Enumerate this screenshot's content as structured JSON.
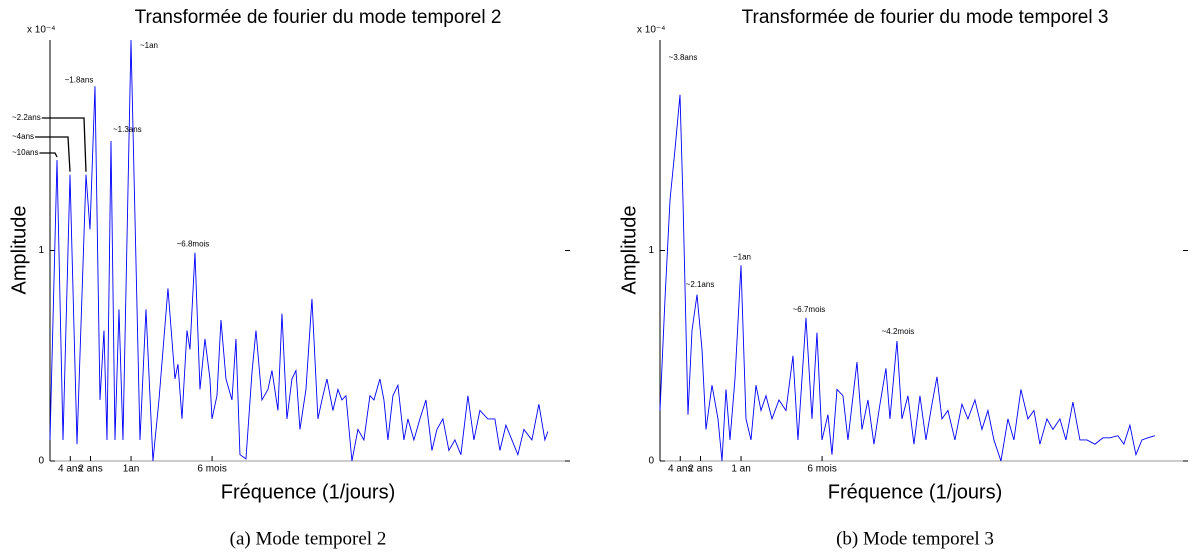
{
  "chart_data": [
    {
      "type": "line",
      "title": "Transformée de fourier du mode temporel 2",
      "y_scale_label": "x 10⁻⁴",
      "xlabel": "Fréquence (1/jours)",
      "ylabel": "Amplitude",
      "caption": "(a) Mode temporel 2",
      "xlim": [
        0,
        0.01758
      ],
      "ylim": [
        0,
        2.0
      ],
      "yticks": [
        0,
        1
      ],
      "xticks": [
        {
          "value": 0.000685,
          "label": "4 ans"
        },
        {
          "value": 0.00137,
          "label": "2 ans"
        },
        {
          "value": 0.00274,
          "label": "1an"
        },
        {
          "value": 0.00548,
          "label": "6 mois"
        }
      ],
      "x": [
        0,
        0.000237,
        0.00044,
        0.000676,
        0.000913,
        0.001217,
        0.001352,
        0.001521,
        0.00169,
        0.001825,
        0.001927,
        0.002062,
        0.002197,
        0.002332,
        0.002467,
        0.002738,
        0.003042,
        0.003245,
        0.003481,
        0.003684,
        0.003988,
        0.004225,
        0.004326,
        0.004462,
        0.004631,
        0.004732,
        0.004901,
        0.00507,
        0.005239,
        0.005408,
        0.005476,
        0.005645,
        0.00578,
        0.005949,
        0.006152,
        0.006287,
        0.006422,
        0.006625,
        0.006828,
        0.006963,
        0.007166,
        0.007368,
        0.007504,
        0.007706,
        0.007842,
        0.008011,
        0.00818,
        0.008315,
        0.00845,
        0.008653,
        0.008856,
        0.009058,
        0.009194,
        0.009363,
        0.009565,
        0.009734,
        0.00987,
        0.010005,
        0.010208,
        0.01041,
        0.010613,
        0.010816,
        0.010951,
        0.011154,
        0.011289,
        0.011424,
        0.011593,
        0.011762,
        0.011965,
        0.0121,
        0.012303,
        0.012506,
        0.012709,
        0.012912,
        0.013081,
        0.013283,
        0.013486,
        0.013689,
        0.013892,
        0.014128,
        0.014331,
        0.014534,
        0.014804,
        0.015041,
        0.01521,
        0.015413,
        0.015616,
        0.015818,
        0.016021,
        0.016292,
        0.016528,
        0.016731,
        0.016832
      ],
      "series": [
        {
          "color": "#0000ff",
          "values": [
            0.1,
            1.43,
            0.1,
            1.36,
            0.08,
            1.36,
            1.1,
            1.78,
            0.29,
            0.62,
            0.1,
            1.52,
            0.1,
            0.72,
            0.1,
            2.0,
            0.1,
            0.72,
            0,
            0.29,
            0.82,
            0.39,
            0.46,
            0.2,
            0.62,
            0.53,
            0.99,
            0.34,
            0.58,
            0.39,
            0.2,
            0.31,
            0.67,
            0.39,
            0.29,
            0.58,
            0.03,
            0.01,
            0.42,
            0.62,
            0.29,
            0.34,
            0.43,
            0.24,
            0.7,
            0.2,
            0.39,
            0.43,
            0.15,
            0.34,
            0.77,
            0.2,
            0.29,
            0.39,
            0.24,
            0.34,
            0.29,
            0.31,
            0,
            0.15,
            0.1,
            0.31,
            0.29,
            0.39,
            0.29,
            0.1,
            0.31,
            0.36,
            0.1,
            0.2,
            0.1,
            0.2,
            0.29,
            0.05,
            0.15,
            0.2,
            0.05,
            0.1,
            0.03,
            0.31,
            0.1,
            0.24,
            0.2,
            0.2,
            0.05,
            0.17,
            0.1,
            0.03,
            0.15,
            0.1,
            0.27,
            0.1,
            0.14
          ]
        }
      ],
      "annotations": [
        {
          "text": "~10ans",
          "x": 0.000237,
          "y": 1.43
        },
        {
          "text": "~4ans",
          "x": 0.000676,
          "y": 1.36
        },
        {
          "text": "~2.2ans",
          "x": 0.001217,
          "y": 1.36
        },
        {
          "text": "~1.8ans",
          "x": 0.001521,
          "y": 1.78
        },
        {
          "text": "~1.3ans",
          "x": 0.002062,
          "y": 1.52
        },
        {
          "text": "~1an",
          "x": 0.002738,
          "y": 2.0
        },
        {
          "text": "~6.8mois",
          "x": 0.004901,
          "y": 0.99
        }
      ]
    },
    {
      "type": "line",
      "title": "Transformée de fourier du mode temporel 3",
      "y_scale_label": "x 10⁻⁴",
      "xlabel": "Fréquence (1/jours)",
      "ylabel": "Amplitude",
      "caption": "(b) Mode temporel 3",
      "xlim": [
        0,
        0.01785
      ],
      "ylim": [
        0,
        2.0
      ],
      "yticks": [
        0,
        1
      ],
      "xticks": [
        {
          "value": 0.000685,
          "label": "4 ans"
        },
        {
          "value": 0.00137,
          "label": "2 ans"
        },
        {
          "value": 0.00274,
          "label": "1 an"
        },
        {
          "value": 0.00548,
          "label": "6 mois"
        }
      ],
      "x": [
        0,
        0.000169,
        0.000338,
        0.000507,
        0.000676,
        0.000777,
        0.000946,
        0.001082,
        0.001251,
        0.00142,
        0.001555,
        0.001758,
        0.00196,
        0.002096,
        0.002231,
        0.002366,
        0.002535,
        0.002738,
        0.002907,
        0.003076,
        0.003245,
        0.003414,
        0.003583,
        0.003786,
        0.004022,
        0.004259,
        0.004495,
        0.004664,
        0.004935,
        0.005138,
        0.005307,
        0.005476,
        0.005678,
        0.005814,
        0.005983,
        0.006185,
        0.006354,
        0.006659,
        0.006828,
        0.00703,
        0.007233,
        0.007436,
        0.007639,
        0.007774,
        0.008011,
        0.00818,
        0.008382,
        0.008585,
        0.008788,
        0.008991,
        0.009194,
        0.009363,
        0.009532,
        0.009734,
        0.009971,
        0.010208,
        0.01041,
        0.010647,
        0.010884,
        0.011086,
        0.011289,
        0.011526,
        0.011762,
        0.011965,
        0.012202,
        0.012438,
        0.012641,
        0.012844,
        0.013081,
        0.013283,
        0.01352,
        0.013723,
        0.013959,
        0.014196,
        0.014433,
        0.014703,
        0.014973,
        0.01521,
        0.01548,
        0.015683,
        0.015886,
        0.016089,
        0.016292,
        0.016494,
        0.016731
      ],
      "series": [
        {
          "color": "#0000ff",
          "values": [
            0.24,
            0.77,
            1.24,
            1.48,
            1.74,
            1.24,
            0.22,
            0.62,
            0.79,
            0.53,
            0.15,
            0.36,
            0.2,
            0,
            0.34,
            0.1,
            0.39,
            0.93,
            0.2,
            0.1,
            0.36,
            0.24,
            0.31,
            0.2,
            0.29,
            0.24,
            0.5,
            0.1,
            0.68,
            0.2,
            0.61,
            0.1,
            0.22,
            0.03,
            0.34,
            0.31,
            0.1,
            0.47,
            0.15,
            0.29,
            0.08,
            0.27,
            0.44,
            0.2,
            0.57,
            0.2,
            0.31,
            0.08,
            0.31,
            0.1,
            0.27,
            0.4,
            0.2,
            0.24,
            0.1,
            0.27,
            0.2,
            0.29,
            0.15,
            0.24,
            0.1,
            0,
            0.2,
            0.1,
            0.34,
            0.2,
            0.24,
            0.08,
            0.2,
            0.15,
            0.2,
            0.1,
            0.28,
            0.1,
            0.1,
            0.08,
            0.11,
            0.11,
            0.12,
            0.08,
            0.17,
            0.03,
            0.1,
            0.11,
            0.12
          ]
        }
      ],
      "annotations": [
        {
          "text": "~3.8ans",
          "x": 0.000676,
          "y": 1.74
        },
        {
          "text": "~2.1ans",
          "x": 0.001251,
          "y": 0.79
        },
        {
          "text": "~1an",
          "x": 0.002738,
          "y": 0.93
        },
        {
          "text": "~6.7mois",
          "x": 0.004935,
          "y": 0.68
        },
        {
          "text": "~4.2mois",
          "x": 0.008011,
          "y": 0.57
        }
      ]
    }
  ]
}
